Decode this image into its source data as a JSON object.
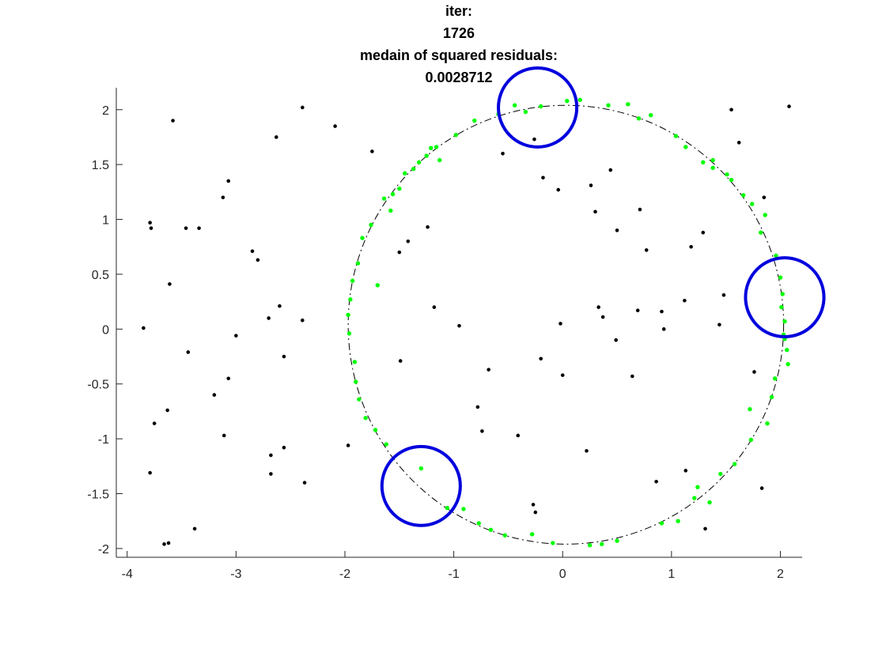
{
  "chart_data": {
    "type": "scatter",
    "title_lines": [
      "iter:",
      "1726",
      "medain of squared residuals:",
      "0.0028712"
    ],
    "xlabel": "",
    "ylabel": "",
    "xlim": [
      -4.1,
      2.2
    ],
    "ylim": [
      -2.08,
      2.2
    ],
    "x_ticks": [
      -4,
      -3,
      -2,
      -1,
      0,
      1,
      2
    ],
    "x_tick_labels": [
      "-4",
      "-3",
      "-2",
      "-1",
      "0",
      "1",
      "2"
    ],
    "y_ticks": [
      -2,
      -1.5,
      -1,
      -0.5,
      0,
      0.5,
      1,
      1.5,
      2
    ],
    "y_tick_labels": [
      "-2",
      "-1.5",
      "-1",
      "-0.5",
      "0",
      "0.5",
      "1",
      "1.5",
      "2"
    ],
    "grid": false,
    "legend": "none",
    "colors": {
      "outliers": "#000000",
      "inliers": "#00ff00",
      "fitted_circle": "#000000",
      "sample_circles": "#0000dd",
      "axes": "#262626"
    },
    "fitted_circle": {
      "center": [
        0.03,
        0.04
      ],
      "radius": 2.0,
      "style": "dash-dot"
    },
    "sample_circles": [
      {
        "center": [
          -0.23,
          2.02
        ],
        "radius": 0.36
      },
      {
        "center": [
          2.04,
          0.29
        ],
        "radius": 0.36
      },
      {
        "center": [
          -1.3,
          -1.43
        ],
        "radius": 0.36
      }
    ],
    "series": [
      {
        "role": "outliers",
        "points": [
          [
            -3.85,
            0.01
          ],
          [
            -3.79,
            0.97
          ],
          [
            -3.78,
            0.92
          ],
          [
            -3.75,
            -0.86
          ],
          [
            -3.79,
            -1.31
          ],
          [
            -3.66,
            -1.96
          ],
          [
            -3.62,
            -1.95
          ],
          [
            -3.63,
            -0.74
          ],
          [
            -3.61,
            0.41
          ],
          [
            -3.58,
            1.9
          ],
          [
            -3.46,
            0.92
          ],
          [
            -3.44,
            -0.21
          ],
          [
            -3.38,
            -1.82
          ],
          [
            -3.34,
            0.92
          ],
          [
            -3.2,
            -0.6
          ],
          [
            -3.12,
            1.2
          ],
          [
            -3.11,
            -0.97
          ],
          [
            -3.07,
            1.35
          ],
          [
            -3.07,
            -0.45
          ],
          [
            -3.0,
            -0.06
          ],
          [
            -2.85,
            0.71
          ],
          [
            -2.8,
            0.63
          ],
          [
            -2.7,
            0.1
          ],
          [
            -2.68,
            -1.15
          ],
          [
            -2.68,
            -1.32
          ],
          [
            -2.63,
            1.75
          ],
          [
            -2.6,
            0.21
          ],
          [
            -2.56,
            -0.25
          ],
          [
            -2.56,
            -1.08
          ],
          [
            -2.39,
            2.02
          ],
          [
            -2.39,
            0.08
          ],
          [
            -2.37,
            -1.4
          ],
          [
            -2.09,
            1.85
          ],
          [
            -1.97,
            -1.06
          ],
          [
            -1.75,
            1.62
          ],
          [
            -1.5,
            0.7
          ],
          [
            -1.49,
            -0.29
          ],
          [
            -1.42,
            0.8
          ],
          [
            -1.24,
            0.93
          ],
          [
            -1.18,
            0.2
          ],
          [
            -0.95,
            0.03
          ],
          [
            -0.78,
            -0.71
          ],
          [
            -0.74,
            -0.93
          ],
          [
            -0.68,
            -0.37
          ],
          [
            -0.55,
            1.6
          ],
          [
            -0.41,
            -0.97
          ],
          [
            -0.26,
            1.73
          ],
          [
            -0.27,
            -1.6
          ],
          [
            -0.25,
            -1.67
          ],
          [
            -0.2,
            -0.27
          ],
          [
            -0.18,
            1.38
          ],
          [
            -0.02,
            0.05
          ],
          [
            -0.04,
            1.27
          ],
          [
            0.0,
            -0.42
          ],
          [
            0.22,
            -1.11
          ],
          [
            0.26,
            1.31
          ],
          [
            0.3,
            1.07
          ],
          [
            0.33,
            0.2
          ],
          [
            0.37,
            0.11
          ],
          [
            0.44,
            1.45
          ],
          [
            0.49,
            -0.1
          ],
          [
            0.5,
            0.9
          ],
          [
            0.64,
            -0.43
          ],
          [
            0.69,
            0.17
          ],
          [
            0.71,
            1.09
          ],
          [
            0.77,
            0.72
          ],
          [
            0.86,
            -1.39
          ],
          [
            0.91,
            0.16
          ],
          [
            0.93,
            0.0
          ],
          [
            1.12,
            0.26
          ],
          [
            1.13,
            -1.29
          ],
          [
            1.18,
            0.75
          ],
          [
            1.29,
            0.88
          ],
          [
            1.31,
            -1.82
          ],
          [
            1.44,
            0.04
          ],
          [
            1.48,
            0.31
          ],
          [
            1.55,
            2.0
          ],
          [
            1.62,
            1.7
          ],
          [
            1.76,
            -0.39
          ],
          [
            1.83,
            -1.45
          ],
          [
            2.08,
            2.03
          ],
          [
            1.85,
            1.2
          ]
        ]
      },
      {
        "role": "inliers",
        "points": [
          [
            -1.97,
            0.13
          ],
          [
            -1.96,
            -0.04
          ],
          [
            -1.95,
            0.27
          ],
          [
            -1.93,
            0.44
          ],
          [
            -1.91,
            -0.3
          ],
          [
            -1.9,
            -0.48
          ],
          [
            -1.88,
            0.6
          ],
          [
            -1.87,
            -0.64
          ],
          [
            -1.84,
            0.83
          ],
          [
            -1.81,
            -0.81
          ],
          [
            -1.76,
            0.95
          ],
          [
            -1.72,
            -0.92
          ],
          [
            -1.7,
            0.4
          ],
          [
            -1.64,
            1.19
          ],
          [
            -1.62,
            -1.05
          ],
          [
            -1.58,
            1.08
          ],
          [
            -1.56,
            1.23
          ],
          [
            -1.5,
            1.28
          ],
          [
            -1.45,
            1.42
          ],
          [
            -1.37,
            1.46
          ],
          [
            -1.32,
            1.52
          ],
          [
            -1.3,
            -1.27
          ],
          [
            -1.25,
            1.58
          ],
          [
            -1.21,
            1.65
          ],
          [
            -1.16,
            1.66
          ],
          [
            -1.13,
            1.54
          ],
          [
            -1.06,
            -1.63
          ],
          [
            -0.98,
            1.77
          ],
          [
            -0.91,
            -1.64
          ],
          [
            -0.81,
            1.9
          ],
          [
            -0.77,
            -1.77
          ],
          [
            -0.66,
            -1.83
          ],
          [
            -0.59,
            1.96
          ],
          [
            -0.53,
            -1.88
          ],
          [
            -0.44,
            2.04
          ],
          [
            -0.34,
            1.98
          ],
          [
            -0.28,
            -1.87
          ],
          [
            -0.2,
            2.03
          ],
          [
            -0.09,
            -1.95
          ],
          [
            0.04,
            2.08
          ],
          [
            0.16,
            2.09
          ],
          [
            0.25,
            -1.97
          ],
          [
            0.36,
            -1.96
          ],
          [
            0.42,
            2.04
          ],
          [
            0.5,
            -1.93
          ],
          [
            0.6,
            2.05
          ],
          [
            0.7,
            1.92
          ],
          [
            0.81,
            1.95
          ],
          [
            0.91,
            -1.77
          ],
          [
            1.04,
            1.76
          ],
          [
            1.06,
            -1.75
          ],
          [
            1.13,
            1.66
          ],
          [
            1.21,
            -1.54
          ],
          [
            1.24,
            -1.44
          ],
          [
            1.29,
            1.52
          ],
          [
            1.35,
            -1.58
          ],
          [
            1.38,
            1.47
          ],
          [
            1.45,
            -1.32
          ],
          [
            1.51,
            1.41
          ],
          [
            1.58,
            -1.23
          ],
          [
            1.66,
            1.22
          ],
          [
            1.72,
            -0.73
          ],
          [
            1.73,
            -1.01
          ],
          [
            1.82,
            0.88
          ],
          [
            1.88,
            -0.86
          ],
          [
            1.92,
            -0.62
          ],
          [
            1.95,
            -0.45
          ],
          [
            1.96,
            0.67
          ],
          [
            2.0,
            0.47
          ],
          [
            2.01,
            0.2
          ],
          [
            2.02,
            0.32
          ],
          [
            2.03,
            -0.05
          ],
          [
            2.04,
            0.07
          ],
          [
            2.04,
            -0.09
          ],
          [
            2.06,
            -0.19
          ],
          [
            2.07,
            -0.32
          ],
          [
            1.86,
            1.04
          ],
          [
            1.74,
            1.14
          ],
          [
            1.55,
            1.36
          ],
          [
            1.38,
            1.54
          ]
        ]
      }
    ]
  }
}
